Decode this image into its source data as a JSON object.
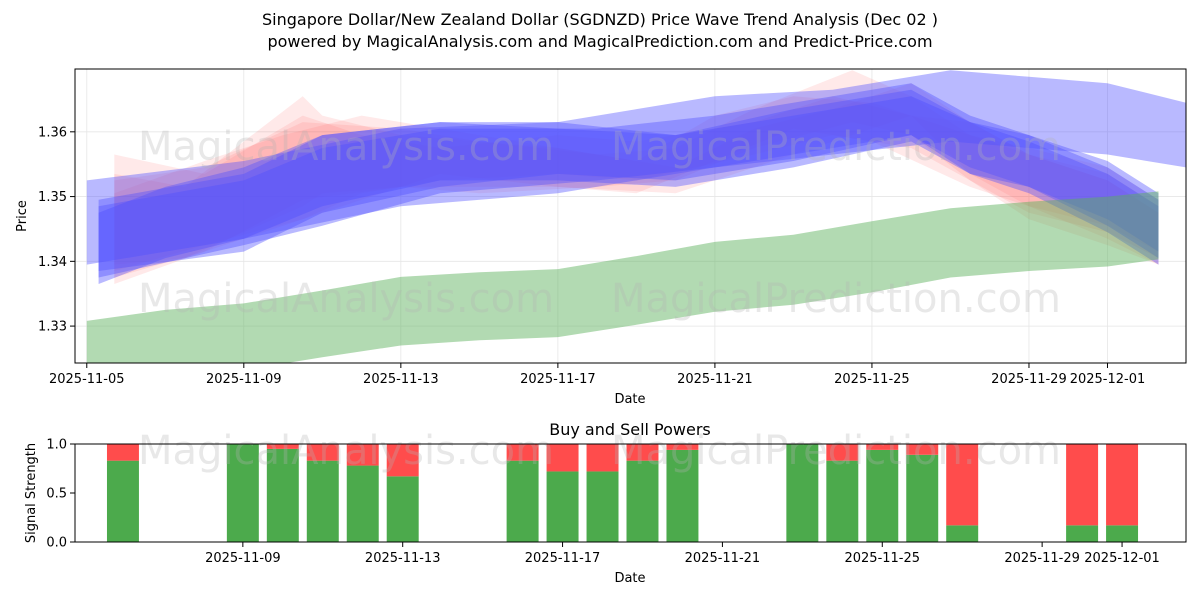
{
  "title": {
    "line1": "Singapore Dollar/New Zealand Dollar (SGDNZD) Price Wave Trend Analysis (Dec 02 )",
    "line2": "powered by MagicalAnalysis.com and MagicalPrediction.com and Predict-Price.com"
  },
  "watermarks": {
    "left": "MagicalAnalysis.com",
    "right": "MagicalPrediction.com"
  },
  "colors": {
    "red_band": "#ff6060",
    "blue_band": "#5050ff",
    "green_band": "#5cb15c",
    "buy": "#4caa4c",
    "sell": "#ff4c4c"
  },
  "chart_data": [
    {
      "type": "area",
      "name": "price-wave-chart",
      "xlabel": "Date",
      "ylabel": "Price",
      "xlim": [
        -0.3,
        28.0
      ],
      "ylim": [
        1.3243,
        1.3697
      ],
      "grid": true,
      "x_ticks": [
        {
          "x": 0,
          "label": "2025-11-05"
        },
        {
          "x": 4,
          "label": "2025-11-09"
        },
        {
          "x": 8,
          "label": "2025-11-13"
        },
        {
          "x": 12,
          "label": "2025-11-17"
        },
        {
          "x": 16,
          "label": "2025-11-21"
        },
        {
          "x": 20,
          "label": "2025-11-25"
        },
        {
          "x": 24,
          "label": "2025-11-29"
        },
        {
          "x": 26,
          "label": "2025-12-01"
        }
      ],
      "y_ticks": [
        {
          "y": 1.33,
          "label": "1.33"
        },
        {
          "y": 1.34,
          "label": "1.34"
        },
        {
          "y": 1.35,
          "label": "1.35"
        },
        {
          "y": 1.36,
          "label": "1.36"
        }
      ],
      "series": [
        {
          "name": "red-band-1",
          "color": "red",
          "opacity": 0.14,
          "x": [
            0.7,
            3,
            5.5,
            7,
            9,
            12,
            14,
            17,
            19,
            21,
            22.5,
            24,
            26,
            27.3
          ],
          "upper": [
            1.3565,
            1.3535,
            1.3625,
            1.3595,
            1.3575,
            1.3595,
            1.3585,
            1.3615,
            1.3655,
            1.3625,
            1.3615,
            1.3565,
            1.3525,
            1.3475
          ],
          "lower": [
            1.3385,
            1.3425,
            1.3465,
            1.3505,
            1.3525,
            1.3535,
            1.3525,
            1.3565,
            1.3595,
            1.3575,
            1.3525,
            1.3465,
            1.3425,
            1.3395
          ]
        },
        {
          "name": "red-band-2",
          "color": "red",
          "opacity": 0.14,
          "x": [
            0.7,
            3,
            5,
            7,
            9,
            12,
            14,
            16,
            18,
            20,
            22.5,
            24,
            26,
            27.3
          ],
          "upper": [
            1.3505,
            1.3555,
            1.3595,
            1.3625,
            1.3605,
            1.3575,
            1.3555,
            1.3625,
            1.3655,
            1.3645,
            1.3595,
            1.3575,
            1.3545,
            1.3495
          ],
          "lower": [
            1.3365,
            1.3415,
            1.3455,
            1.3495,
            1.3535,
            1.3515,
            1.3505,
            1.3555,
            1.3605,
            1.3585,
            1.3515,
            1.3485,
            1.3455,
            1.3415
          ]
        },
        {
          "name": "red-band-3",
          "color": "red",
          "opacity": 0.14,
          "x": [
            0.7,
            2.5,
            5.5,
            6,
            8,
            12,
            15,
            17,
            19,
            21,
            22.5,
            24,
            26,
            27.3
          ],
          "upper": [
            1.3535,
            1.3515,
            1.3655,
            1.3625,
            1.3595,
            1.3575,
            1.3545,
            1.3605,
            1.3635,
            1.3675,
            1.3615,
            1.3565,
            1.3525,
            1.3475
          ],
          "lower": [
            1.3395,
            1.3405,
            1.3485,
            1.3505,
            1.3515,
            1.3515,
            1.3505,
            1.3545,
            1.3585,
            1.3625,
            1.3535,
            1.3485,
            1.3435,
            1.3395
          ]
        },
        {
          "name": "red-band-4",
          "color": "red",
          "opacity": 0.14,
          "x": [
            0.7,
            3,
            5.5,
            8,
            10,
            13,
            15,
            17,
            19.5,
            21,
            22.5,
            24,
            26,
            27.3
          ],
          "upper": [
            1.3525,
            1.3545,
            1.3615,
            1.3605,
            1.3585,
            1.3565,
            1.3575,
            1.3635,
            1.3695,
            1.3655,
            1.3595,
            1.3565,
            1.3535,
            1.3485
          ],
          "lower": [
            1.3375,
            1.3415,
            1.3495,
            1.3515,
            1.3505,
            1.3515,
            1.3525,
            1.3575,
            1.3615,
            1.3595,
            1.3525,
            1.3475,
            1.3445,
            1.3405
          ]
        },
        {
          "name": "blue-band-1",
          "color": "blue",
          "opacity": 0.4,
          "x": [
            0,
            4,
            8,
            12,
            16,
            19,
            22,
            24,
            26,
            28
          ],
          "upper": [
            1.3525,
            1.3555,
            1.3605,
            1.3615,
            1.3655,
            1.3665,
            1.3695,
            1.3685,
            1.3675,
            1.3645
          ],
          "lower": [
            1.3395,
            1.3435,
            1.3485,
            1.3505,
            1.3545,
            1.3565,
            1.3585,
            1.3575,
            1.3565,
            1.3545
          ]
        },
        {
          "name": "blue-band-2",
          "color": "blue",
          "opacity": 0.4,
          "x": [
            0.3,
            4,
            6,
            9,
            12,
            15,
            18,
            21,
            22.5,
            24,
            26,
            27.3
          ],
          "upper": [
            1.3495,
            1.3535,
            1.3595,
            1.3615,
            1.3615,
            1.3595,
            1.3635,
            1.3665,
            1.3615,
            1.3595,
            1.3555,
            1.3505
          ],
          "lower": [
            1.3385,
            1.3415,
            1.3475,
            1.3515,
            1.3535,
            1.3525,
            1.3555,
            1.3595,
            1.3535,
            1.3515,
            1.3465,
            1.3415
          ]
        },
        {
          "name": "blue-band-3",
          "color": "blue",
          "opacity": 0.4,
          "x": [
            0.3,
            4,
            6,
            9,
            13,
            16,
            19,
            21,
            22.5,
            24,
            26,
            27.3
          ],
          "upper": [
            1.3485,
            1.3525,
            1.3575,
            1.3605,
            1.3605,
            1.3625,
            1.3655,
            1.3675,
            1.3625,
            1.3595,
            1.3545,
            1.3495
          ],
          "lower": [
            1.3375,
            1.3425,
            1.3455,
            1.3505,
            1.3525,
            1.3545,
            1.3575,
            1.3595,
            1.3545,
            1.3515,
            1.3455,
            1.3405
          ]
        },
        {
          "name": "blue-band-4",
          "color": "blue",
          "opacity": 0.4,
          "x": [
            0.3,
            2,
            4,
            6,
            9,
            12,
            15,
            18,
            21,
            22.5,
            24,
            26,
            27.3
          ],
          "upper": [
            1.3475,
            1.3515,
            1.3545,
            1.3595,
            1.3615,
            1.3605,
            1.3595,
            1.3625,
            1.3655,
            1.3615,
            1.3585,
            1.3535,
            1.3485
          ],
          "lower": [
            1.3365,
            1.3405,
            1.3435,
            1.3485,
            1.3525,
            1.3525,
            1.3515,
            1.3545,
            1.3585,
            1.3535,
            1.3505,
            1.3445,
            1.3395
          ]
        },
        {
          "name": "green-band",
          "color": "green",
          "opacity": 0.47,
          "x": [
            0,
            2,
            4,
            6,
            8,
            10,
            12,
            14,
            16,
            18,
            20,
            22,
            24,
            26,
            27.3
          ],
          "upper": [
            1.3308,
            1.3325,
            1.3335,
            1.3355,
            1.3376,
            1.3383,
            1.3388,
            1.3408,
            1.343,
            1.3441,
            1.3462,
            1.3482,
            1.3492,
            1.35,
            1.3508
          ],
          "lower": [
            1.3225,
            1.3218,
            1.3232,
            1.3252,
            1.327,
            1.3278,
            1.3283,
            1.3302,
            1.3322,
            1.3333,
            1.3352,
            1.3375,
            1.3385,
            1.3392,
            1.3403
          ]
        }
      ]
    },
    {
      "type": "bar",
      "name": "buy-sell-powers",
      "title": "Buy and Sell Powers",
      "xlabel": "Date",
      "ylabel": "Signal Strength",
      "ylim": [
        0,
        1.0
      ],
      "xlim": [
        1.8,
        29.6
      ],
      "x_ticks": [
        {
          "x": 6,
          "label": "2025-11-09"
        },
        {
          "x": 10,
          "label": "2025-11-13"
        },
        {
          "x": 14,
          "label": "2025-11-17"
        },
        {
          "x": 18,
          "label": "2025-11-21"
        },
        {
          "x": 22,
          "label": "2025-11-25"
        },
        {
          "x": 26,
          "label": "2025-11-29"
        },
        {
          "x": 28,
          "label": "2025-12-01"
        }
      ],
      "y_ticks": [
        {
          "y": 0.0,
          "label": "0.0"
        },
        {
          "y": 0.5,
          "label": "0.5"
        },
        {
          "y": 1.0,
          "label": "1.0"
        }
      ],
      "x": [
        3,
        6,
        7,
        8,
        9,
        10,
        13,
        14,
        15,
        16,
        17,
        20,
        21,
        22,
        23,
        24,
        27,
        28
      ],
      "series": [
        {
          "name": "Buy",
          "values": [
            0.83,
            1.0,
            0.95,
            0.83,
            0.78,
            0.67,
            0.83,
            0.72,
            0.72,
            0.83,
            0.94,
            1.0,
            0.83,
            0.94,
            0.89,
            0.17,
            0.17,
            0.17
          ]
        },
        {
          "name": "Sell",
          "values": [
            0.17,
            0.0,
            0.05,
            0.17,
            0.22,
            0.33,
            0.17,
            0.28,
            0.28,
            0.17,
            0.06,
            0.0,
            0.17,
            0.06,
            0.11,
            0.83,
            0.83,
            0.83
          ]
        }
      ]
    }
  ]
}
